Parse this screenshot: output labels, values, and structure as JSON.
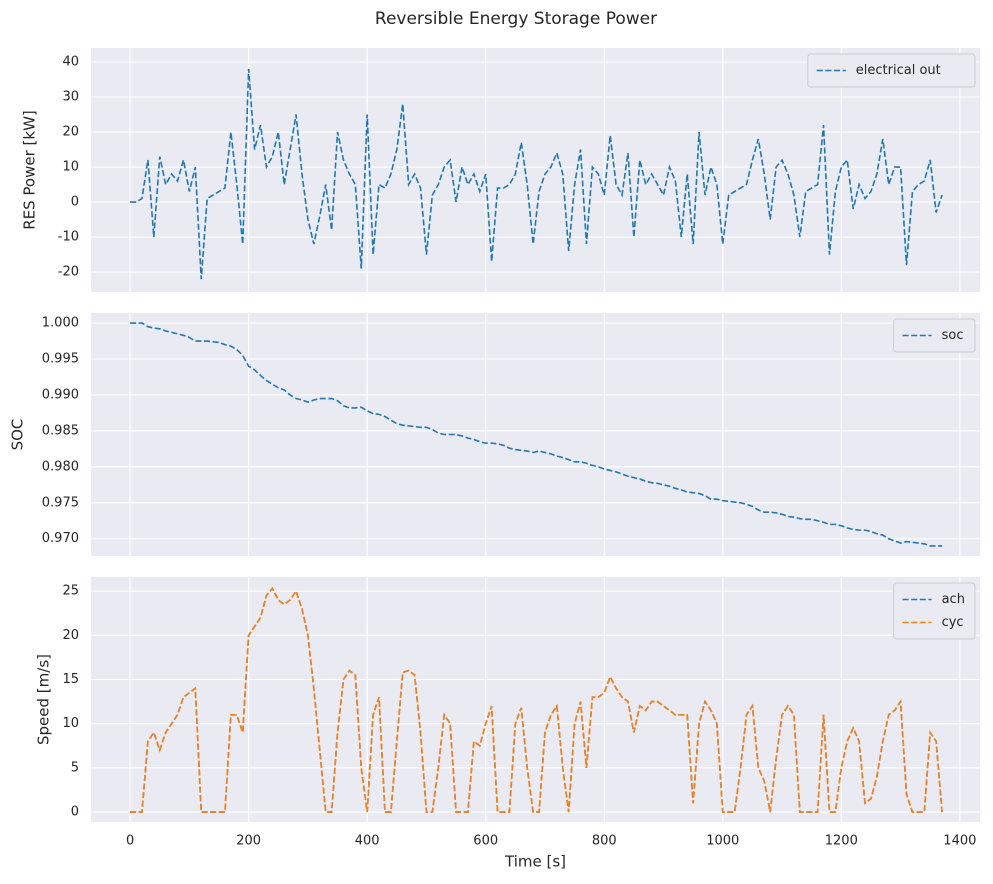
{
  "title": "Reversible Energy Storage Power",
  "chart_data": [
    {
      "type": "line",
      "ylabel": "RES Power [kW]",
      "legend": "upper right",
      "grid": true,
      "xlim": [
        -66,
        1434
      ],
      "xticks": [
        0,
        200,
        400,
        600,
        800,
        1000,
        1200,
        1400
      ],
      "ylim": [
        -25.7,
        44
      ],
      "yticks": [
        -20,
        -10,
        0,
        10,
        20,
        30,
        40
      ],
      "x": [
        0,
        10,
        20,
        30,
        40,
        50,
        60,
        70,
        80,
        90,
        100,
        110,
        120,
        130,
        140,
        150,
        160,
        170,
        180,
        190,
        200,
        210,
        220,
        230,
        240,
        250,
        260,
        270,
        280,
        290,
        300,
        310,
        320,
        330,
        340,
        350,
        360,
        370,
        380,
        390,
        400,
        410,
        420,
        430,
        440,
        450,
        460,
        470,
        480,
        490,
        500,
        510,
        520,
        530,
        540,
        550,
        560,
        570,
        580,
        590,
        600,
        610,
        620,
        630,
        640,
        650,
        660,
        670,
        680,
        690,
        700,
        710,
        720,
        730,
        740,
        750,
        760,
        770,
        780,
        790,
        800,
        810,
        820,
        830,
        840,
        850,
        860,
        870,
        880,
        890,
        900,
        910,
        920,
        930,
        940,
        950,
        960,
        970,
        980,
        990,
        1000,
        1010,
        1020,
        1030,
        1040,
        1050,
        1060,
        1070,
        1080,
        1090,
        1100,
        1110,
        1120,
        1130,
        1140,
        1150,
        1160,
        1170,
        1180,
        1190,
        1200,
        1210,
        1220,
        1230,
        1240,
        1250,
        1260,
        1270,
        1280,
        1290,
        1300,
        1310,
        1320,
        1330,
        1340,
        1350,
        1360,
        1370
      ],
      "series": [
        {
          "name": "electrical out",
          "color": "#1f77b4",
          "values": [
            0,
            0,
            1,
            12,
            -10,
            13,
            5,
            8,
            6,
            12,
            3,
            10,
            -22,
            1,
            2,
            3,
            4,
            20,
            5,
            -12,
            38,
            15,
            22,
            10,
            13,
            20,
            5,
            15,
            25,
            8,
            -5,
            -12,
            -4,
            5,
            -8,
            20,
            12,
            8,
            5,
            -19,
            25,
            -15,
            5,
            4,
            8,
            15,
            28,
            5,
            8,
            4,
            -15,
            2,
            5,
            10,
            12,
            0,
            10,
            5,
            8,
            3,
            8,
            -17,
            4,
            4,
            5,
            8,
            17,
            5,
            -12,
            3,
            8,
            10,
            14,
            8,
            -14,
            5,
            15,
            -12,
            10,
            8,
            2,
            19,
            5,
            2,
            14,
            -10,
            12,
            5,
            8,
            5,
            2,
            10,
            6,
            -10,
            8,
            -12,
            20,
            2,
            10,
            5,
            -12,
            2,
            3,
            4,
            5,
            12,
            18,
            8,
            -5,
            10,
            12,
            8,
            2,
            -10,
            3,
            4,
            5,
            22,
            -15,
            3,
            10,
            12,
            -2,
            5,
            1,
            3,
            8,
            18,
            5,
            10,
            10,
            -18,
            3,
            5,
            6,
            12,
            -3,
            2
          ]
        }
      ]
    },
    {
      "type": "line",
      "ylabel": "SOC",
      "legend": "upper right",
      "grid": true,
      "xlim": [
        -66,
        1434
      ],
      "xticks": [
        0,
        200,
        400,
        600,
        800,
        1000,
        1200,
        1400
      ],
      "ylim": [
        0.9676,
        1.0014
      ],
      "yticks": [
        {
          "value": 0.97,
          "label": "0.970"
        },
        {
          "value": 0.975,
          "label": "0.975"
        },
        {
          "value": 0.98,
          "label": "0.980"
        },
        {
          "value": 0.985,
          "label": "0.985"
        },
        {
          "value": 0.99,
          "label": "0.990"
        },
        {
          "value": 0.995,
          "label": "0.995"
        },
        {
          "value": 1,
          "label": "1.000"
        }
      ],
      "x": [
        0,
        10,
        20,
        30,
        40,
        50,
        60,
        70,
        80,
        90,
        100,
        110,
        120,
        130,
        140,
        150,
        160,
        170,
        180,
        190,
        200,
        210,
        220,
        230,
        240,
        250,
        260,
        270,
        280,
        290,
        300,
        310,
        320,
        330,
        340,
        350,
        360,
        370,
        380,
        390,
        400,
        410,
        420,
        430,
        440,
        450,
        460,
        470,
        480,
        490,
        500,
        510,
        520,
        530,
        540,
        550,
        560,
        570,
        580,
        590,
        600,
        610,
        620,
        630,
        640,
        650,
        660,
        670,
        680,
        690,
        700,
        710,
        720,
        730,
        740,
        750,
        760,
        770,
        780,
        790,
        800,
        810,
        820,
        830,
        840,
        850,
        860,
        870,
        880,
        890,
        900,
        910,
        920,
        930,
        940,
        950,
        960,
        970,
        980,
        990,
        1000,
        1010,
        1020,
        1030,
        1040,
        1050,
        1060,
        1070,
        1080,
        1090,
        1100,
        1110,
        1120,
        1130,
        1140,
        1150,
        1160,
        1170,
        1180,
        1190,
        1200,
        1210,
        1220,
        1230,
        1240,
        1250,
        1260,
        1270,
        1280,
        1290,
        1300,
        1310,
        1320,
        1330,
        1340,
        1350,
        1360,
        1370
      ],
      "series": [
        {
          "name": "soc",
          "color": "#1f77b4",
          "values": [
            1.0,
            1.0,
            1.0,
            0.9995,
            0.9993,
            0.9992,
            0.9989,
            0.9987,
            0.9985,
            0.9983,
            0.998,
            0.9975,
            0.9975,
            0.9975,
            0.9974,
            0.9973,
            0.997,
            0.9968,
            0.9963,
            0.9955,
            0.994,
            0.9935,
            0.9927,
            0.992,
            0.9915,
            0.991,
            0.9907,
            0.99,
            0.9895,
            0.9893,
            0.989,
            0.9893,
            0.9895,
            0.9895,
            0.9895,
            0.9892,
            0.9885,
            0.9882,
            0.9882,
            0.9883,
            0.9878,
            0.9874,
            0.9873,
            0.987,
            0.9865,
            0.986,
            0.9858,
            0.9857,
            0.9856,
            0.9855,
            0.9855,
            0.9852,
            0.9847,
            0.9845,
            0.9845,
            0.9845,
            0.9843,
            0.984,
            0.9838,
            0.9835,
            0.9833,
            0.9833,
            0.9832,
            0.983,
            0.9826,
            0.9824,
            0.9823,
            0.9822,
            0.982,
            0.9822,
            0.982,
            0.9818,
            0.9815,
            0.9813,
            0.981,
            0.9807,
            0.9807,
            0.9805,
            0.9802,
            0.98,
            0.9797,
            0.9795,
            0.9793,
            0.979,
            0.9787,
            0.9785,
            0.9783,
            0.978,
            0.9778,
            0.9777,
            0.9775,
            0.9773,
            0.977,
            0.9768,
            0.9765,
            0.9764,
            0.9763,
            0.976,
            0.9755,
            0.9755,
            0.9753,
            0.9752,
            0.9751,
            0.975,
            0.9748,
            0.9745,
            0.974,
            0.9737,
            0.9737,
            0.9736,
            0.9734,
            0.9731,
            0.973,
            0.9728,
            0.9727,
            0.9727,
            0.9725,
            0.9723,
            0.972,
            0.972,
            0.9718,
            0.9715,
            0.9713,
            0.9712,
            0.9712,
            0.971,
            0.9707,
            0.9705,
            0.97,
            0.9697,
            0.9694,
            0.9696,
            0.9695,
            0.9694,
            0.9693,
            0.969,
            0.969,
            0.969
          ]
        }
      ]
    },
    {
      "type": "line",
      "ylabel": "Speed [m/s]",
      "xlabel": "Time [s]",
      "legend": "upper right",
      "grid": true,
      "xlim": [
        -66,
        1434
      ],
      "xticks": [
        0,
        200,
        400,
        600,
        800,
        1000,
        1200,
        1400
      ],
      "ylim": [
        -1.13,
        26.6
      ],
      "yticks": [
        0,
        5,
        10,
        15,
        20,
        25
      ],
      "x": [
        0,
        10,
        20,
        30,
        40,
        50,
        60,
        70,
        80,
        90,
        100,
        110,
        120,
        130,
        140,
        150,
        160,
        170,
        180,
        190,
        200,
        210,
        220,
        230,
        240,
        250,
        260,
        270,
        280,
        290,
        300,
        310,
        320,
        330,
        340,
        350,
        360,
        370,
        380,
        390,
        400,
        410,
        420,
        430,
        440,
        450,
        460,
        470,
        480,
        490,
        500,
        510,
        520,
        530,
        540,
        550,
        560,
        570,
        580,
        590,
        600,
        610,
        620,
        630,
        640,
        650,
        660,
        670,
        680,
        690,
        700,
        710,
        720,
        730,
        740,
        750,
        760,
        770,
        780,
        790,
        800,
        810,
        820,
        830,
        840,
        850,
        860,
        870,
        880,
        890,
        900,
        910,
        920,
        930,
        940,
        950,
        960,
        970,
        980,
        990,
        1000,
        1010,
        1020,
        1030,
        1040,
        1050,
        1060,
        1070,
        1080,
        1090,
        1100,
        1110,
        1120,
        1130,
        1140,
        1150,
        1160,
        1170,
        1180,
        1190,
        1200,
        1210,
        1220,
        1230,
        1240,
        1250,
        1260,
        1270,
        1280,
        1290,
        1300,
        1310,
        1320,
        1330,
        1340,
        1350,
        1360,
        1370
      ],
      "series": [
        {
          "name": "ach",
          "color": "#1f77b4",
          "values": [
            0,
            0,
            0,
            8,
            9,
            7,
            9,
            10,
            11,
            13,
            13.5,
            14,
            0,
            0,
            0,
            0,
            0,
            11,
            11,
            9,
            20,
            21,
            22,
            24.5,
            25.3,
            24,
            23.5,
            24,
            25,
            23,
            20,
            14,
            7,
            0,
            0,
            9,
            15,
            16,
            15.5,
            5,
            0,
            11,
            13,
            0,
            0,
            8,
            15.8,
            16,
            15.5,
            9,
            0,
            0,
            5,
            11,
            10,
            0,
            0,
            0,
            8,
            7.5,
            10,
            12,
            0,
            0,
            0,
            10,
            11.8,
            5,
            0,
            0,
            9,
            11,
            12,
            5,
            0,
            10,
            12.5,
            5,
            13,
            13,
            13.5,
            15.3,
            14,
            13,
            12.5,
            9,
            12,
            11.5,
            12.5,
            12.5,
            12,
            11.5,
            11,
            11,
            11,
            1,
            10,
            12.5,
            11.5,
            10,
            0,
            0,
            0,
            5,
            11,
            12,
            5,
            3.5,
            0,
            6,
            11,
            12,
            11,
            0,
            0,
            0,
            0,
            11,
            0,
            0,
            5,
            8,
            9.5,
            8,
            1,
            1.5,
            4,
            8,
            11,
            11.5,
            12.5,
            2,
            0,
            0,
            0,
            9,
            8,
            0
          ]
        },
        {
          "name": "cyc",
          "color": "#ff7f0e",
          "values": [
            0,
            0,
            0,
            8,
            9,
            7,
            9,
            10,
            11,
            13,
            13.5,
            14,
            0,
            0,
            0,
            0,
            0,
            11,
            11,
            9,
            20,
            21,
            22,
            24.5,
            25.3,
            24,
            23.5,
            24,
            25,
            23,
            20,
            14,
            7,
            0,
            0,
            9,
            15,
            16,
            15.5,
            5,
            0,
            11,
            13,
            0,
            0,
            8,
            15.8,
            16,
            15.5,
            9,
            0,
            0,
            5,
            11,
            10,
            0,
            0,
            0,
            8,
            7.5,
            10,
            12,
            0,
            0,
            0,
            10,
            11.8,
            5,
            0,
            0,
            9,
            11,
            12,
            5,
            0,
            10,
            12.5,
            5,
            13,
            13,
            13.5,
            15.3,
            14,
            13,
            12.5,
            9,
            12,
            11.5,
            12.5,
            12.5,
            12,
            11.5,
            11,
            11,
            11,
            1,
            10,
            12.5,
            11.5,
            10,
            0,
            0,
            0,
            5,
            11,
            12,
            5,
            3.5,
            0,
            6,
            11,
            12,
            11,
            0,
            0,
            0,
            0,
            11,
            0,
            0,
            5,
            8,
            9.5,
            8,
            1,
            1.5,
            4,
            8,
            11,
            11.5,
            12.5,
            2,
            0,
            0,
            0,
            9,
            8,
            0
          ]
        }
      ]
    }
  ]
}
